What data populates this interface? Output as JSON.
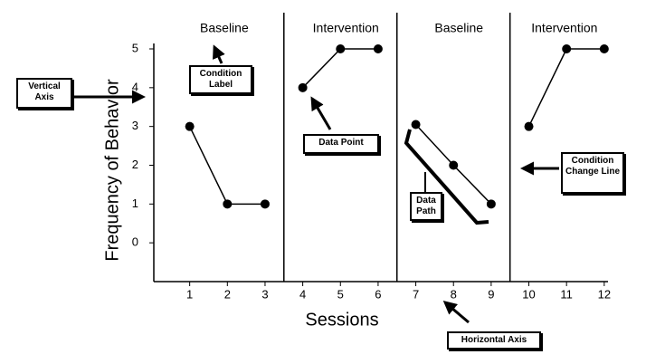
{
  "chart_data": {
    "type": "phase-line",
    "x_label": "Sessions",
    "y_label": "Frequency of Behavior",
    "xlim": [
      0,
      12.1
    ],
    "ylim": [
      -1,
      5
    ],
    "xticks": [
      1,
      2,
      3,
      4,
      5,
      6,
      7,
      8,
      9,
      10,
      11,
      12
    ],
    "yticks": [
      0,
      1,
      2,
      3,
      4,
      5
    ],
    "color": "#000000",
    "phases": [
      {
        "label": "Baseline",
        "x": [
          1,
          2,
          3
        ],
        "values": [
          3,
          1,
          1
        ]
      },
      {
        "label": "Intervention",
        "x": [
          4,
          5,
          6
        ],
        "values": [
          4,
          5,
          5
        ]
      },
      {
        "label": "Baseline",
        "x": [
          7,
          8,
          9
        ],
        "values": [
          3.05,
          2,
          1
        ]
      },
      {
        "label": "Intervention",
        "x": [
          10,
          11,
          12
        ],
        "values": [
          3,
          5,
          5
        ]
      }
    ],
    "annotations": [
      "Vertical Axis",
      "Condition Label",
      "Data Point",
      "Data Path",
      "Condition Change Line",
      "Horizontal Axis"
    ]
  }
}
